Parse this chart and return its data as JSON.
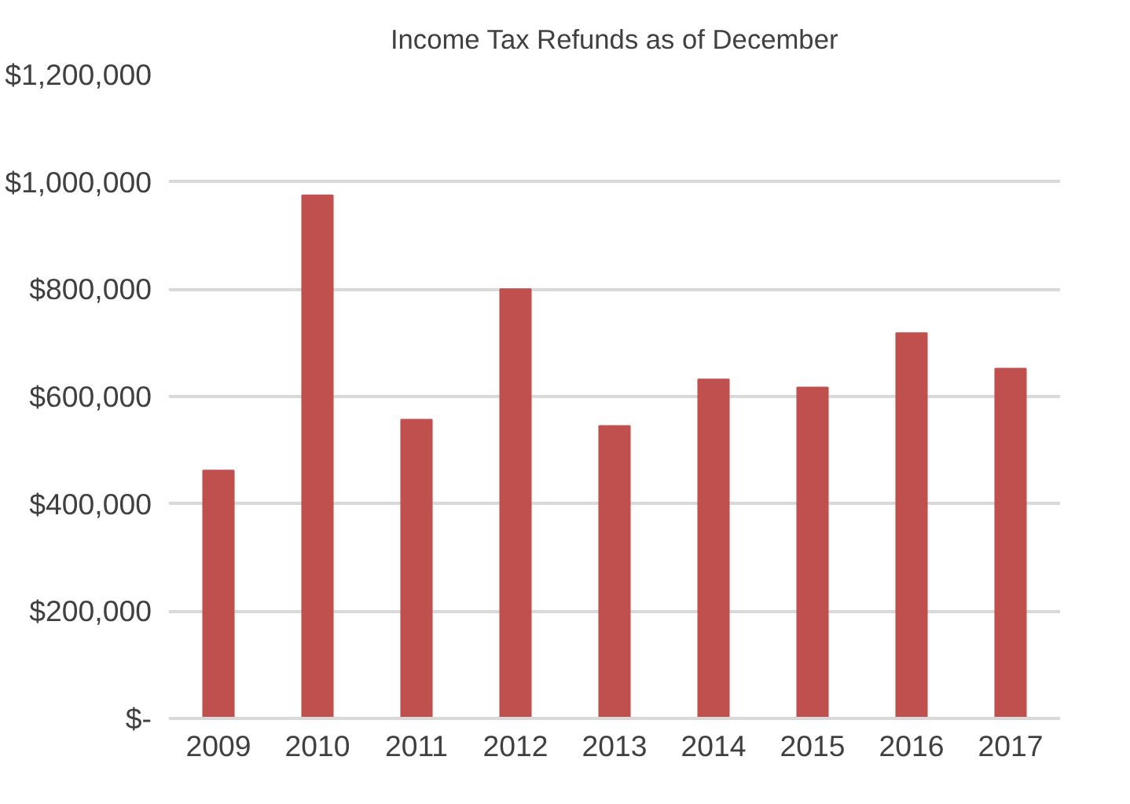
{
  "chart_data": {
    "type": "bar",
    "title": "Income Tax Refunds as of December",
    "categories": [
      "2009",
      "2010",
      "2011",
      "2012",
      "2013",
      "2014",
      "2015",
      "2016",
      "2017"
    ],
    "values": [
      462000,
      975000,
      557000,
      800000,
      545000,
      632000,
      617000,
      718000,
      652000
    ],
    "color": "#c0504d",
    "ylim": [
      0,
      1200000
    ],
    "yticks": [
      {
        "value": 0,
        "label": "$-"
      },
      {
        "value": 200000,
        "label": "$200,000"
      },
      {
        "value": 400000,
        "label": "$400,000"
      },
      {
        "value": 600000,
        "label": "$600,000"
      },
      {
        "value": 800000,
        "label": "$800,000"
      },
      {
        "value": 1000000,
        "label": "$1,000,000"
      },
      {
        "value": 1200000,
        "label": "$1,200,000"
      }
    ],
    "grid": "y"
  }
}
